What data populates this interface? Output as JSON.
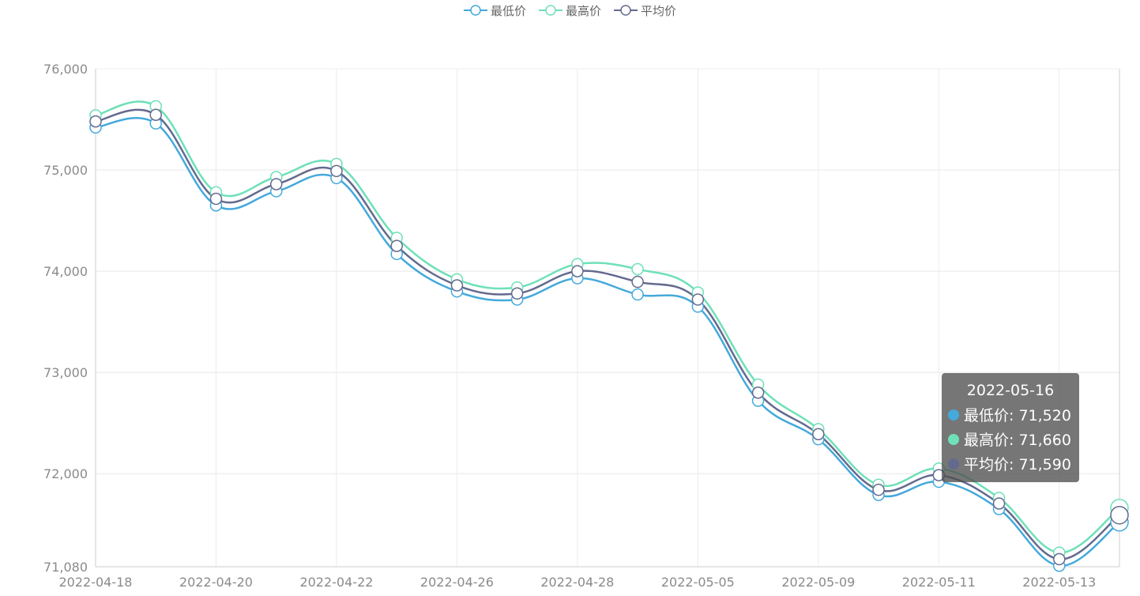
{
  "legend": [
    {
      "name": "最低价",
      "color": "#44a9db"
    },
    {
      "name": "最高价",
      "color": "#6fe0b8"
    },
    {
      "name": "平均价",
      "color": "#646a8e"
    }
  ],
  "tooltip": {
    "date": "2022-05-16",
    "rows": [
      {
        "label": "最低价: 71,520",
        "color": "#44a9db"
      },
      {
        "label": "最高价: 71,660",
        "color": "#6fe0b8"
      },
      {
        "label": "平均价: 71,590",
        "color": "#646a8e"
      }
    ]
  },
  "chart_data": {
    "type": "line",
    "x": [
      "2022-04-18",
      "2022-04-19",
      "2022-04-20",
      "2022-04-21",
      "2022-04-22",
      "2022-04-25",
      "2022-04-26",
      "2022-04-27",
      "2022-04-28",
      "2022-04-29",
      "2022-05-05",
      "2022-05-06",
      "2022-05-09",
      "2022-05-10",
      "2022-05-11",
      "2022-05-12",
      "2022-05-13",
      "2022-05-16"
    ],
    "x_tick_labels": [
      "2022-04-18",
      "2022-04-20",
      "2022-04-22",
      "2022-04-26",
      "2022-04-28",
      "2022-05-05",
      "2022-05-09",
      "2022-05-11",
      "2022-05-13"
    ],
    "y_tick_labels": [
      "76,000",
      "75,000",
      "74,000",
      "73,000",
      "72,000",
      "71,080"
    ],
    "ylim": [
      71080,
      76000
    ],
    "grid": true,
    "legend_position": "top-center",
    "series": [
      {
        "name": "最低价",
        "color": "#44a9db",
        "values": [
          75420,
          75460,
          74650,
          74790,
          74920,
          74170,
          73800,
          73720,
          73930,
          73770,
          73650,
          72720,
          72340,
          71790,
          71920,
          71650,
          71090,
          71520
        ]
      },
      {
        "name": "最高价",
        "color": "#6fe0b8",
        "values": [
          75540,
          75630,
          74780,
          74930,
          75060,
          74330,
          73920,
          73840,
          74070,
          74020,
          73790,
          72880,
          72440,
          71890,
          72050,
          71760,
          71220,
          71660
        ]
      },
      {
        "name": "平均价",
        "color": "#646a8e",
        "values": [
          75480,
          75545,
          74715,
          74860,
          74990,
          74250,
          73860,
          73780,
          74000,
          73895,
          73720,
          72800,
          72390,
          71840,
          71985,
          71705,
          71155,
          71590
        ]
      }
    ],
    "highlight_index": 17
  }
}
